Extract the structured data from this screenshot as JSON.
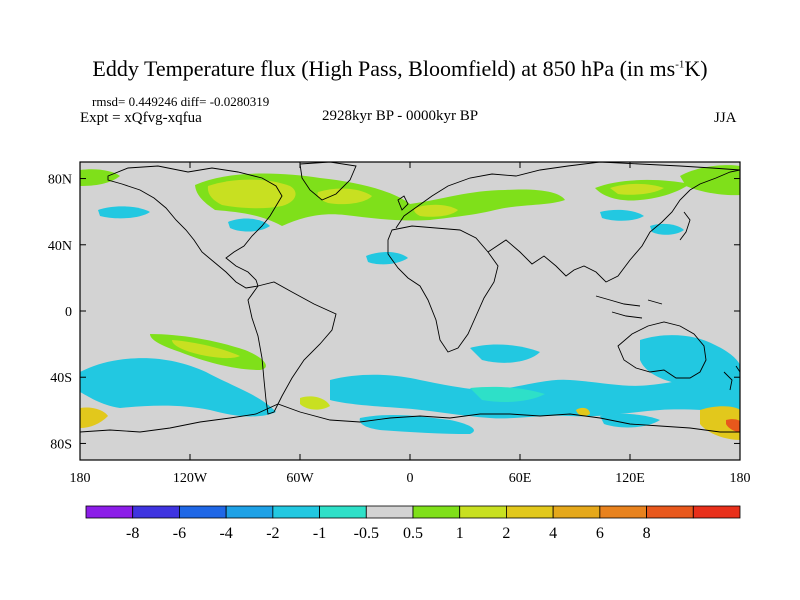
{
  "title": {
    "main": "Eddy Temperature flux (High Pass, Bloomfield) at 850 hPa (in ms",
    "sup": "-1",
    "tail": "K)"
  },
  "stats": "rmsd= 0.449246 diff= -0.0280319",
  "experiment": "Expt = xQfvg-xqfua",
  "period": "2928kyr BP - 0000kyr BP",
  "season": "JJA",
  "map": {
    "ocean_fill": "#d3d3d3",
    "coast_color": "#000000",
    "lon_ticks": [
      "180",
      "120W",
      "60W",
      "0",
      "60E",
      "120E",
      "180"
    ],
    "lat_ticks": [
      "80N",
      "40N",
      "0",
      "40S",
      "80S"
    ]
  },
  "colorbar": {
    "colors": [
      "#8c1de8",
      "#3f34e0",
      "#1f67e6",
      "#1ea1e6",
      "#22c8e1",
      "#2ee0c8",
      "#d3d3d3",
      "#7fe01a",
      "#c8e021",
      "#e2c81c",
      "#e5a81b",
      "#e8821e",
      "#e8581c",
      "#e8301b"
    ],
    "labels": [
      "-8",
      "-6",
      "-4",
      "-2",
      "-1",
      "-0.5",
      "0.5",
      "1",
      "2",
      "4",
      "6",
      "8"
    ]
  }
}
